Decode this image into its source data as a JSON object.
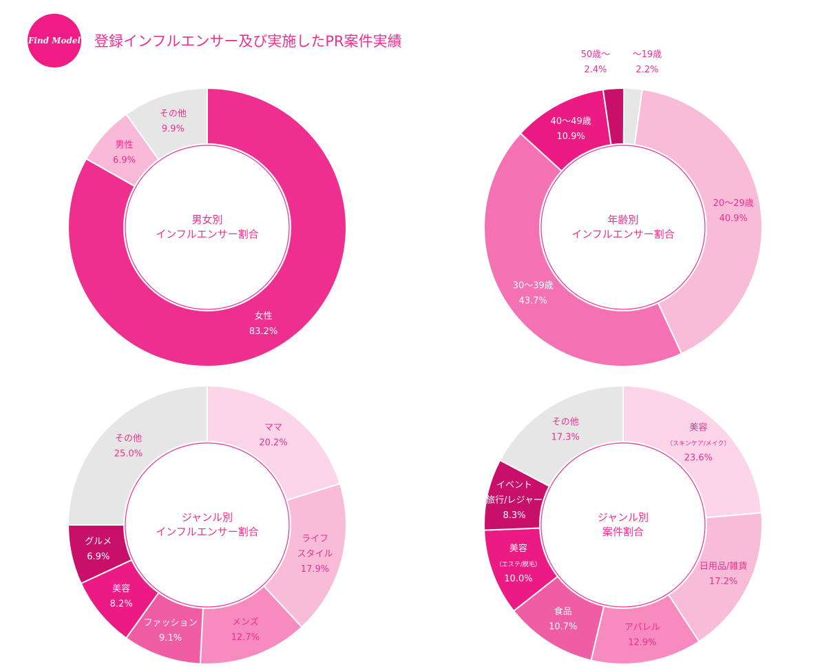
{
  "header": {
    "logo": "Find Model",
    "title": "登録インフルエンサー及び実施したPR案件実績"
  },
  "chart_data": [
    {
      "type": "pie",
      "center_label": [
        "男女別",
        "インフルエンサー割合"
      ],
      "slices": [
        {
          "label": [
            "女性"
          ],
          "value": 83.2,
          "color": "#ee2f8f"
        },
        {
          "label": [
            "男性"
          ],
          "value": 6.9,
          "color": "#f8b8d8"
        },
        {
          "label": [
            "その他"
          ],
          "value": 9.9,
          "color": "#e6e6e6"
        }
      ]
    },
    {
      "type": "pie",
      "center_label": [
        "年齢別",
        "インフルエンサー割合"
      ],
      "slices": [
        {
          "label": [
            "〜19歳"
          ],
          "value": 2.2,
          "color": "#e6e6e6",
          "outside": true
        },
        {
          "label": [
            "20〜29歳"
          ],
          "value": 40.9,
          "color": "#f8bcd9"
        },
        {
          "label": [
            "30〜39歳"
          ],
          "value": 43.7,
          "color": "#f472b4"
        },
        {
          "label": [
            "40〜49歳"
          ],
          "value": 10.9,
          "color": "#ec1a83"
        },
        {
          "label": [
            "50歳〜"
          ],
          "value": 2.4,
          "color": "#c8106a",
          "outside": true
        }
      ]
    },
    {
      "type": "pie",
      "center_label": [
        "ジャンル別",
        "インフルエンサー割合"
      ],
      "slices": [
        {
          "label": [
            "ママ"
          ],
          "value": 20.2,
          "color": "#fcd6e8"
        },
        {
          "label": [
            "ライフ",
            "スタイル"
          ],
          "value": 17.9,
          "color": "#f8bcd9"
        },
        {
          "label": [
            "メンズ"
          ],
          "value": 12.7,
          "color": "#f78abf"
        },
        {
          "label": [
            "ファッション"
          ],
          "value": 9.1,
          "color": "#ef5ea4"
        },
        {
          "label": [
            "美容"
          ],
          "value": 8.2,
          "color": "#ec1a83"
        },
        {
          "label": [
            "グルメ"
          ],
          "value": 6.9,
          "color": "#c8106a"
        },
        {
          "label": [
            "その他"
          ],
          "value": 25.0,
          "color": "#e6e6e6"
        }
      ]
    },
    {
      "type": "pie",
      "center_label": [
        "ジャンル別",
        "案件割合"
      ],
      "slices": [
        {
          "label": [
            "美容",
            "（スキンケア/メイク）"
          ],
          "value": 23.6,
          "color": "#fcd6e8"
        },
        {
          "label": [
            "日用品/雑貨"
          ],
          "value": 17.2,
          "color": "#f8bcd9"
        },
        {
          "label": [
            "アパレル"
          ],
          "value": 12.9,
          "color": "#f78abf"
        },
        {
          "label": [
            "食品"
          ],
          "value": 10.7,
          "color": "#ef5ea4"
        },
        {
          "label": [
            "美容",
            "（エステ/脱毛）"
          ],
          "value": 10.0,
          "color": "#ec1a83"
        },
        {
          "label": [
            "イベント",
            "旅行/レジャー"
          ],
          "value": 8.3,
          "color": "#c8106a"
        },
        {
          "label": [
            "その他"
          ],
          "value": 17.3,
          "color": "#e6e6e6"
        }
      ]
    }
  ]
}
